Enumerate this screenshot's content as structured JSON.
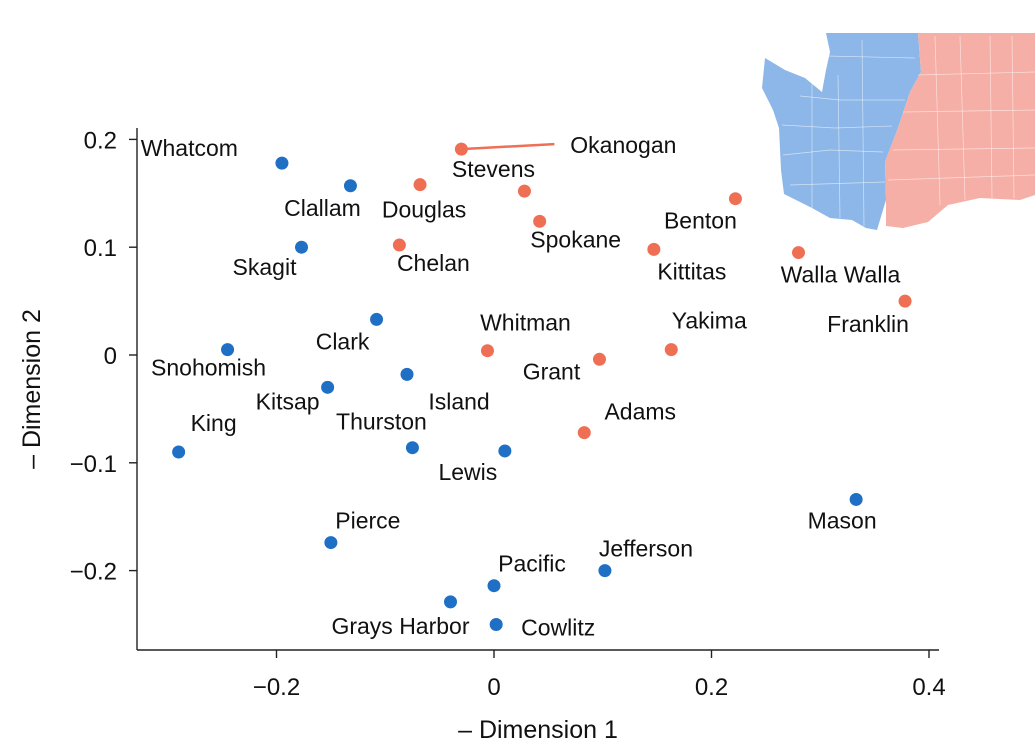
{
  "chart_data": {
    "type": "scatter",
    "xlabel": "– Dimension 1",
    "ylabel": "– Dimension 2",
    "xlim": [
      -0.325,
      0.41
    ],
    "ylim": [
      -0.27,
      0.21
    ],
    "xticks": [
      -0.2,
      0,
      0.2,
      0.4
    ],
    "yticks": [
      -0.2,
      -0.1,
      0,
      0.1,
      0.2
    ],
    "xtick_labels": [
      "−0.2",
      "0",
      "0.2",
      "0.4"
    ],
    "ytick_labels": [
      "−0.2",
      "−0.1",
      "0",
      "0.1",
      "0.2"
    ],
    "grid": false,
    "colors": {
      "west": "#1f6fc5",
      "east": "#ef6f54",
      "map_west": "#8db7e8",
      "map_east": "#f6afa6"
    },
    "series": [
      {
        "points": [
          {
            "label": "Whatcom",
            "x": -0.195,
            "y": 0.178
          },
          {
            "label": "Clallam",
            "x": -0.132,
            "y": 0.157
          },
          {
            "label": "Skagit",
            "x": -0.177,
            "y": 0.1
          },
          {
            "label": "Clark",
            "x": -0.108,
            "y": 0.033
          },
          {
            "label": "Snohomish",
            "x": -0.245,
            "y": 0.005
          },
          {
            "label": "Kitsap",
            "x": -0.153,
            "y": -0.03
          },
          {
            "label": "Island",
            "x": -0.08,
            "y": -0.018
          },
          {
            "label": "King",
            "x": -0.29,
            "y": -0.09
          },
          {
            "label": "Thurston",
            "x": -0.075,
            "y": -0.086
          },
          {
            "label": "Lewis",
            "x": 0.01,
            "y": -0.089
          },
          {
            "label": "Mason",
            "x": 0.333,
            "y": -0.134
          },
          {
            "label": "Pierce",
            "x": -0.15,
            "y": -0.174
          },
          {
            "label": "Jefferson",
            "x": 0.102,
            "y": -0.2
          },
          {
            "label": "Pacific",
            "x": 0.0,
            "y": -0.214
          },
          {
            "label": "Grays Harbor",
            "x": -0.04,
            "y": -0.229
          },
          {
            "label": "Cowlitz",
            "x": 0.002,
            "y": -0.25
          }
        ]
      },
      {
        "points": [
          {
            "label": "Okanogan",
            "x": -0.03,
            "y": 0.191
          },
          {
            "label": "Stevens",
            "x": 0.028,
            "y": 0.152
          },
          {
            "label": "Douglas",
            "x": -0.068,
            "y": 0.158
          },
          {
            "label": "Spokane",
            "x": 0.042,
            "y": 0.124
          },
          {
            "label": "Chelan",
            "x": -0.087,
            "y": 0.102
          },
          {
            "label": "Benton",
            "x": 0.222,
            "y": 0.145
          },
          {
            "label": "Kittitas",
            "x": 0.147,
            "y": 0.098
          },
          {
            "label": "Walla Walla",
            "x": 0.28,
            "y": 0.095
          },
          {
            "label": "Franklin",
            "x": 0.378,
            "y": 0.05
          },
          {
            "label": "Whitman",
            "x": -0.006,
            "y": 0.004
          },
          {
            "label": "Grant",
            "x": 0.097,
            "y": -0.004
          },
          {
            "label": "Yakima",
            "x": 0.163,
            "y": 0.005
          },
          {
            "label": "Adams",
            "x": 0.083,
            "y": -0.072
          }
        ]
      }
    ]
  }
}
